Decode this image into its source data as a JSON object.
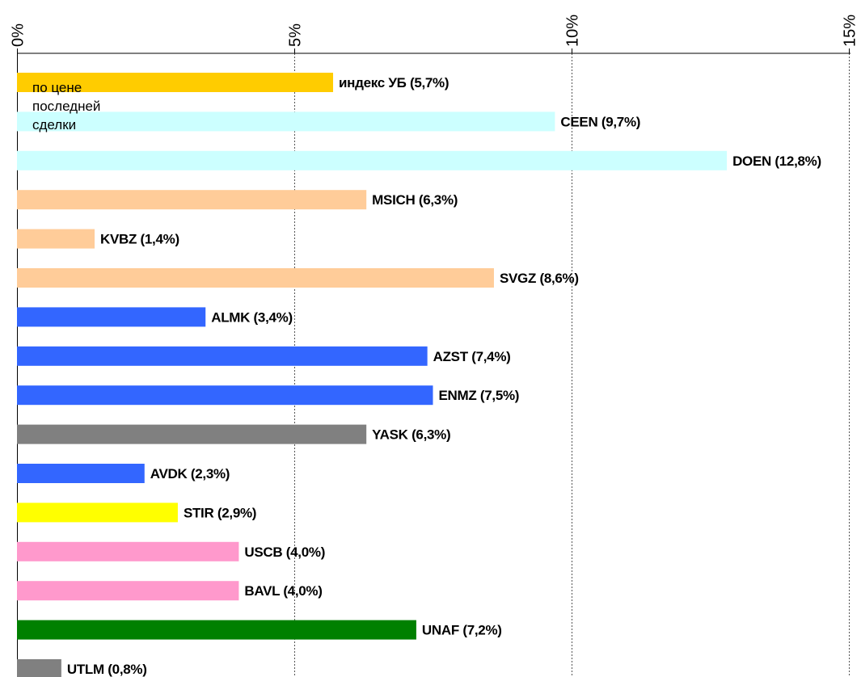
{
  "chart_data": {
    "type": "bar",
    "orientation": "horizontal",
    "axis": {
      "ticks": [
        0,
        5,
        10,
        15
      ],
      "tick_labels": [
        "0%",
        "5%",
        "10%",
        "15%"
      ],
      "xlim": [
        0,
        15
      ],
      "position": "top",
      "grid": true
    },
    "note_lines": [
      "по цене",
      "последней",
      "сделки"
    ],
    "bars": [
      {
        "name": "индекс УБ",
        "value": 5.7,
        "label": "индекс УБ (5,7%)",
        "color": "#ffcc00"
      },
      {
        "name": "CEEN",
        "value": 9.7,
        "label": "CEEN (9,7%)",
        "color": "#ccffff"
      },
      {
        "name": "DOEN",
        "value": 12.8,
        "label": "DOEN (12,8%)",
        "color": "#ccffff"
      },
      {
        "name": "MSICH",
        "value": 6.3,
        "label": "MSICH (6,3%)",
        "color": "#ffcc99"
      },
      {
        "name": "KVBZ",
        "value": 1.4,
        "label": "KVBZ (1,4%)",
        "color": "#ffcc99"
      },
      {
        "name": "SVGZ",
        "value": 8.6,
        "label": "SVGZ (8,6%)",
        "color": "#ffcc99"
      },
      {
        "name": "ALMK",
        "value": 3.4,
        "label": "ALMK (3,4%)",
        "color": "#3366ff"
      },
      {
        "name": "AZST",
        "value": 7.4,
        "label": "AZST (7,4%)",
        "color": "#3366ff"
      },
      {
        "name": "ENMZ",
        "value": 7.5,
        "label": "ENMZ (7,5%)",
        "color": "#3366ff"
      },
      {
        "name": "YASK",
        "value": 6.3,
        "label": "YASK (6,3%)",
        "color": "#808080"
      },
      {
        "name": "AVDK",
        "value": 2.3,
        "label": "AVDK (2,3%)",
        "color": "#3366ff"
      },
      {
        "name": "STIR",
        "value": 2.9,
        "label": "STIR (2,9%)",
        "color": "#ffff00"
      },
      {
        "name": "USCB",
        "value": 4.0,
        "label": "USCB (4,0%)",
        "color": "#ff99cc"
      },
      {
        "name": "BAVL",
        "value": 4.0,
        "label": "BAVL (4,0%)",
        "color": "#ff99cc"
      },
      {
        "name": "UNAF",
        "value": 7.2,
        "label": "UNAF (7,2%)",
        "color": "#008000"
      },
      {
        "name": "UTLM",
        "value": 0.8,
        "label": "UTLM (0,8%)",
        "color": "#808080"
      }
    ]
  }
}
